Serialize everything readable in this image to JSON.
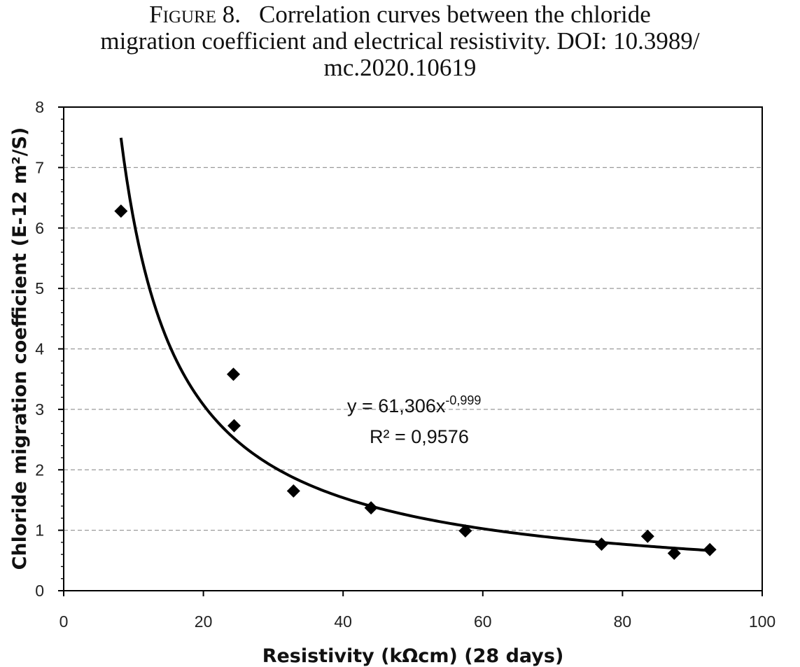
{
  "caption": {
    "lead": "Figure 8.",
    "line1": "Correlation curves between the chloride",
    "line2": "migration coefficient and electrical resistivity. DOI: 10.3989/",
    "line3": "mc.2020.10619"
  },
  "chart_data": {
    "type": "scatter",
    "xlabel": "Resistivity (kΩcm)  (28 days)",
    "ylabel": "Chloride migration coefficient  (E-12 m²/S)",
    "xlim": [
      0,
      100
    ],
    "ylim": [
      0,
      8
    ],
    "x_ticks": [
      "0",
      "20",
      "40",
      "60",
      "80",
      "100"
    ],
    "y_ticks": [
      "0",
      "1",
      "2",
      "3",
      "4",
      "5",
      "6",
      "7",
      "8"
    ],
    "grid": "horizontal dashed",
    "series": [
      {
        "marker": "diamond",
        "x": [
          8.2,
          24.3,
          24.4,
          32.9,
          44.0,
          57.5,
          77.0,
          83.6,
          87.4,
          92.5
        ],
        "y": [
          6.28,
          3.58,
          2.73,
          1.65,
          1.37,
          0.99,
          0.77,
          0.9,
          0.62,
          0.68
        ]
      }
    ],
    "trendline": {
      "type": "power",
      "coef": 61.306,
      "exponent": -0.999,
      "x_range": [
        8.2,
        92.5
      ],
      "equation_base": "y = 61,306x",
      "equation_exp": "-0,999",
      "r_squared": "R² = 0,9576"
    },
    "colors": {
      "marker": "#000000",
      "line": "#000000",
      "grid": "#9a9a9a"
    }
  }
}
